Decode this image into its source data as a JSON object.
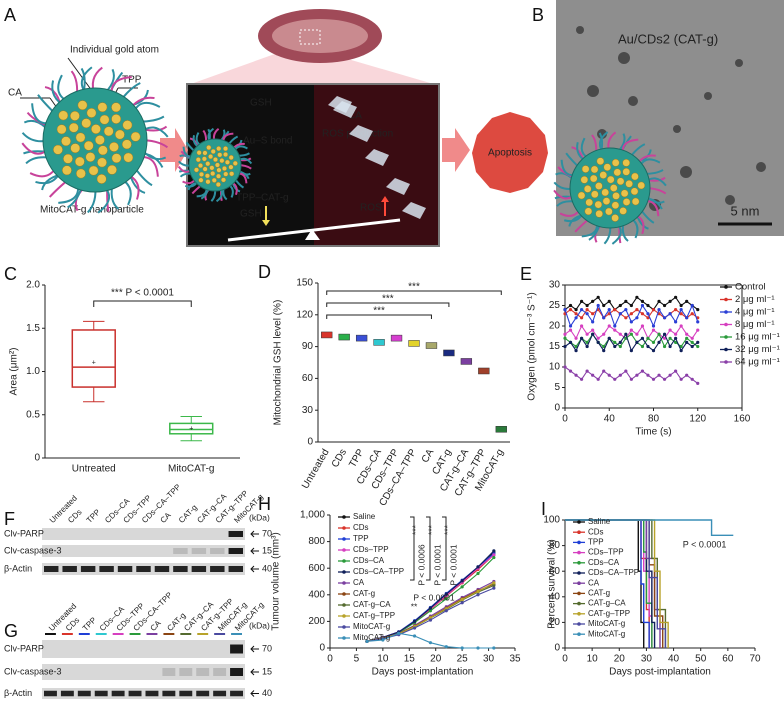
{
  "panel_a": {
    "label": "A",
    "gold_atom": "Individual gold atom",
    "ca": "CA",
    "tpp": "TPP",
    "nanoparticle": "MitoCAT-g nanoparticle",
    "gsh_top": "GSH",
    "au_s_bond": "Au–S bond",
    "tpp_cat_g": "TPP–CAT-g",
    "gsh_bottom": "GSH",
    "ca_right": "CA",
    "ros_production": "ROS production",
    "ros": "ROS",
    "apoptosis": "Apoptosis"
  },
  "panel_b": {
    "label": "B",
    "title": "Au/CDs2 (CAT-g)",
    "scale_bar": "5 nm"
  },
  "panel_f": {
    "label": "F",
    "columns": [
      "Untreated",
      "CDs",
      "TPP",
      "CDs–CA",
      "CDs–TPP",
      "CDs–CA–TPP",
      "CA",
      "CAT-g",
      "CAT-g–CA",
      "CAT-g–TPP",
      "MitoCAT-g"
    ],
    "unit": "(kDa)",
    "rows": [
      {
        "name": "Clv-PARP",
        "size": 70
      },
      {
        "name": "Clv-caspase-3",
        "size": 15
      },
      {
        "name": "β-Actin",
        "size": 40
      }
    ]
  },
  "panel_g": {
    "label": "G",
    "columns": [
      "Untreated",
      "CDs",
      "TPP",
      "CDs–CA",
      "CDs–TPP",
      "CDs–CA–TPP",
      "CA",
      "CAT-g",
      "CAT-g–CA",
      "CAT-g–TPP",
      "MitoCAT-g",
      "MitoCAT-g"
    ],
    "unit": "(kDa)",
    "rows": [
      {
        "name": "Clv-PARP",
        "size": 70
      },
      {
        "name": "Clv-caspase-3",
        "size": 15
      },
      {
        "name": "β-Actin",
        "size": 40
      }
    ]
  },
  "chart_data": [
    {
      "type": "box",
      "label": "C",
      "y_label": "Area (μm²)",
      "annotation": "*** P < 0.0001",
      "categories": [
        "Untreated",
        "MitoCAT-g"
      ],
      "colors": [
        "#c9302c",
        "#3cb84a"
      ],
      "boxes": [
        {
          "min": 0.65,
          "q1": 0.82,
          "median": 1.05,
          "q3": 1.48,
          "max": 1.58,
          "mean": 1.1
        },
        {
          "min": 0.2,
          "q1": 0.28,
          "median": 0.33,
          "q3": 0.4,
          "max": 0.48,
          "mean": 0.34
        }
      ],
      "ylim": [
        0,
        2
      ],
      "yticks": [
        0,
        0.5,
        {
          "value": 1,
          "label": "1.0"
        },
        1.5,
        {
          "value": 2,
          "label": "2.0"
        }
      ]
    },
    {
      "type": "bar",
      "label": "D",
      "y_label": "Mitochondrial GSH level (%)",
      "annotations": [
        "***",
        "***",
        "***"
      ],
      "categories": [
        "Untreated",
        "CDs",
        "TPP",
        "CDs–CA",
        "CDs–TPP",
        "CDs–CA–TPP",
        "CA",
        "CAT-g",
        "CAT-g–CA",
        "CAT-g–TPP",
        "MitoCAT-g"
      ],
      "values": [
        101,
        99,
        98,
        94,
        98,
        93,
        91,
        84,
        76,
        67,
        12
      ],
      "colors": [
        "#d9342b",
        "#2ab04a",
        "#3a4fd6",
        "#2ec8d0",
        "#d63fd0",
        "#e3d32a",
        "#a8a86a",
        "#1a2a80",
        "#7b3fa0",
        "#a0402a",
        "#2a7a3a"
      ],
      "ylim": [
        0,
        150
      ],
      "yticks": [
        0,
        30,
        60,
        90,
        120,
        150
      ]
    },
    {
      "type": "line",
      "label": "E",
      "y_label": "Oxygen (pmol cm⁻³ S⁻¹)",
      "x_label": "Time (s)",
      "legend": "upper right",
      "frame": true,
      "x": [
        0,
        5,
        10,
        15,
        20,
        25,
        30,
        35,
        40,
        45,
        50,
        55,
        60,
        65,
        70,
        75,
        80,
        85,
        90,
        95,
        100,
        105,
        110,
        115,
        120
      ],
      "series": [
        {
          "name": "Control",
          "color": "#111111",
          "values": [
            24,
            25,
            24,
            26,
            25,
            26,
            27,
            25,
            26,
            24,
            25,
            26,
            25,
            27,
            26,
            25,
            24,
            26,
            25,
            26,
            27,
            25,
            26,
            25,
            24
          ]
        },
        {
          "name": "2 μg ml⁻¹",
          "color": "#d9342b",
          "values": [
            23,
            24,
            23,
            22,
            24,
            23,
            24,
            22,
            23,
            24,
            23,
            22,
            23,
            24,
            23,
            22,
            24,
            23,
            22,
            23,
            24,
            23,
            22,
            23,
            22
          ]
        },
        {
          "name": "4 μg ml⁻¹",
          "color": "#2a3fd6",
          "values": [
            24,
            20,
            22,
            24,
            23,
            21,
            25,
            22,
            24,
            20,
            23,
            24,
            21,
            22,
            25,
            23,
            20,
            24,
            22,
            23,
            21,
            24,
            22,
            25,
            21
          ]
        },
        {
          "name": "8 μg ml⁻¹",
          "color": "#d63fc0",
          "values": [
            18,
            19,
            17,
            20,
            18,
            19,
            17,
            18,
            20,
            19,
            18,
            17,
            19,
            18,
            20,
            17,
            19,
            18,
            17,
            19,
            18,
            20,
            18,
            17,
            19
          ]
        },
        {
          "name": "16 μg ml⁻¹",
          "color": "#2a9a3a",
          "values": [
            17,
            16,
            15,
            17,
            16,
            18,
            16,
            15,
            17,
            16,
            15,
            17,
            18,
            16,
            15,
            17,
            16,
            18,
            15,
            17,
            16,
            15,
            17,
            16,
            15
          ]
        },
        {
          "name": "32 μg ml⁻¹",
          "color": "#10205a",
          "values": [
            15,
            16,
            14,
            17,
            15,
            18,
            16,
            14,
            17,
            15,
            16,
            18,
            14,
            16,
            17,
            15,
            14,
            16,
            18,
            15,
            17,
            14,
            16,
            15,
            16
          ]
        },
        {
          "name": "64 μg ml⁻¹",
          "color": "#8a3fa8",
          "values": [
            10,
            9,
            8,
            7,
            9,
            8,
            7,
            9,
            8,
            7,
            8,
            9,
            7,
            8,
            9,
            8,
            7,
            8,
            7,
            8,
            9,
            7,
            8,
            7,
            6
          ]
        }
      ],
      "xlim": [
        0,
        160
      ],
      "xticks": [
        0,
        40,
        80,
        120,
        160
      ],
      "ylim": [
        0,
        30
      ],
      "yticks": [
        0,
        5,
        10,
        15,
        20,
        25,
        30
      ]
    },
    {
      "type": "line",
      "label": "H",
      "y_label": "Tumour volume (mm³)",
      "x_label": "Days post-implantation",
      "legend": "upper left",
      "frame": false,
      "annotations": [
        "***",
        "***",
        "***",
        "P < 0.0006",
        "P < 0.0001",
        "P < 0.0001",
        "**",
        "P < 0.0001"
      ],
      "x": [
        7,
        10,
        13,
        16,
        19,
        22,
        25,
        28,
        31
      ],
      "series": [
        {
          "name": "Saline",
          "color": "#111111",
          "values": [
            50,
            80,
            120,
            200,
            300,
            400,
            500,
            600,
            720
          ]
        },
        {
          "name": "CDs",
          "color": "#d9342b",
          "values": [
            50,
            78,
            118,
            195,
            290,
            390,
            490,
            590,
            700
          ]
        },
        {
          "name": "TPP",
          "color": "#1f3fd6",
          "values": [
            50,
            80,
            122,
            205,
            305,
            410,
            510,
            610,
            710
          ]
        },
        {
          "name": "CDs–TPP",
          "color": "#d63fc0",
          "values": [
            50,
            79,
            120,
            198,
            295,
            395,
            495,
            600,
            700
          ]
        },
        {
          "name": "CDs–CA",
          "color": "#2a9a3a",
          "values": [
            50,
            76,
            115,
            190,
            280,
            370,
            460,
            560,
            680
          ]
        },
        {
          "name": "CDs–CA–TPP",
          "color": "#10205a",
          "values": [
            50,
            80,
            120,
            200,
            300,
            405,
            505,
            610,
            730
          ]
        },
        {
          "name": "CA",
          "color": "#7b3fa0",
          "values": [
            50,
            75,
            110,
            170,
            240,
            310,
            380,
            440,
            500
          ]
        },
        {
          "name": "CAT-g",
          "color": "#8b4513",
          "values": [
            50,
            74,
            108,
            165,
            230,
            300,
            370,
            430,
            480
          ]
        },
        {
          "name": "CAT-g–CA",
          "color": "#556b2f",
          "values": [
            50,
            72,
            105,
            160,
            225,
            290,
            360,
            420,
            470
          ]
        },
        {
          "name": "CAT-g–TPP",
          "color": "#b8a32a",
          "values": [
            50,
            73,
            106,
            162,
            228,
            295,
            365,
            425,
            490
          ]
        },
        {
          "name": "MitoCAT-g",
          "color": "#4a4aa0",
          "values": [
            50,
            70,
            100,
            150,
            210,
            280,
            340,
            400,
            450
          ]
        },
        {
          "name": "MitoCAT-g",
          "color": "#3a8fb7",
          "values": [
            50,
            60,
            110,
            90,
            40,
            10,
            0,
            0,
            0
          ]
        }
      ],
      "xlim": [
        0,
        35
      ],
      "xticks": [
        0,
        5,
        10,
        15,
        20,
        25,
        30,
        35
      ],
      "ylim": [
        0,
        1000
      ],
      "yticks": [
        0,
        200,
        400,
        600,
        800,
        {
          "value": 1000,
          "label": "1,000"
        }
      ]
    },
    {
      "type": "step",
      "label": "I",
      "y_label": "Percent survival (%)",
      "x_label": "Days post-implantation",
      "legend": "upper left",
      "annotation": "P < 0.0001",
      "series": [
        {
          "name": "Saline",
          "color": "#111111",
          "x": [
            0,
            27,
            27,
            28,
            28,
            29,
            29
          ],
          "values": [
            100,
            100,
            60,
            60,
            20,
            20,
            0
          ]
        },
        {
          "name": "CDs",
          "color": "#d9342b",
          "x": [
            0,
            28,
            28,
            30,
            30,
            31,
            31
          ],
          "values": [
            100,
            100,
            70,
            70,
            30,
            30,
            0
          ]
        },
        {
          "name": "TPP",
          "color": "#1f3fd6",
          "x": [
            0,
            28,
            28,
            29,
            29,
            31,
            31
          ],
          "values": [
            100,
            100,
            50,
            50,
            20,
            20,
            0
          ]
        },
        {
          "name": "CDs–TPP",
          "color": "#d63fc0",
          "x": [
            0,
            29,
            29,
            31,
            31,
            32,
            32
          ],
          "values": [
            100,
            100,
            60,
            60,
            25,
            25,
            0
          ]
        },
        {
          "name": "CDs–CA",
          "color": "#2a9a3a",
          "x": [
            0,
            29,
            29,
            30,
            30,
            32,
            32
          ],
          "values": [
            100,
            100,
            75,
            75,
            35,
            35,
            0
          ]
        },
        {
          "name": "CDs–CA–TPP",
          "color": "#10205a",
          "x": [
            0,
            30,
            30,
            32,
            32,
            33,
            33
          ],
          "values": [
            100,
            100,
            60,
            60,
            20,
            20,
            0
          ]
        },
        {
          "name": "CA",
          "color": "#7b3fa0",
          "x": [
            0,
            30,
            30,
            33,
            33,
            35,
            35
          ],
          "values": [
            100,
            100,
            70,
            70,
            30,
            30,
            0
          ]
        },
        {
          "name": "CAT-g",
          "color": "#8b4513",
          "x": [
            0,
            31,
            31,
            33,
            33,
            36,
            36
          ],
          "values": [
            100,
            100,
            65,
            65,
            25,
            25,
            0
          ]
        },
        {
          "name": "CAT-g–CA",
          "color": "#556b2f",
          "x": [
            0,
            32,
            32,
            34,
            34,
            37,
            37
          ],
          "values": [
            100,
            100,
            70,
            70,
            30,
            30,
            0
          ]
        },
        {
          "name": "CAT-g–TPP",
          "color": "#b8a32a",
          "x": [
            0,
            33,
            33,
            35,
            35,
            38,
            38
          ],
          "values": [
            100,
            100,
            60,
            60,
            20,
            20,
            0
          ]
        },
        {
          "name": "MitoCAT-g",
          "color": "#4a4aa0",
          "x": [
            0,
            31,
            31,
            34,
            34,
            37,
            37
          ],
          "values": [
            100,
            100,
            55,
            55,
            15,
            15,
            0
          ]
        },
        {
          "name": "MitoCAT-g",
          "color": "#3a8fb7",
          "x": [
            0,
            54,
            54,
            62
          ],
          "values": [
            100,
            100,
            88,
            88
          ]
        }
      ],
      "xlim": [
        0,
        70
      ],
      "xticks": [
        0,
        10,
        20,
        30,
        40,
        50,
        60,
        70
      ],
      "ylim": [
        0,
        100
      ],
      "yticks": [
        0,
        20,
        40,
        60,
        80,
        100
      ]
    }
  ]
}
